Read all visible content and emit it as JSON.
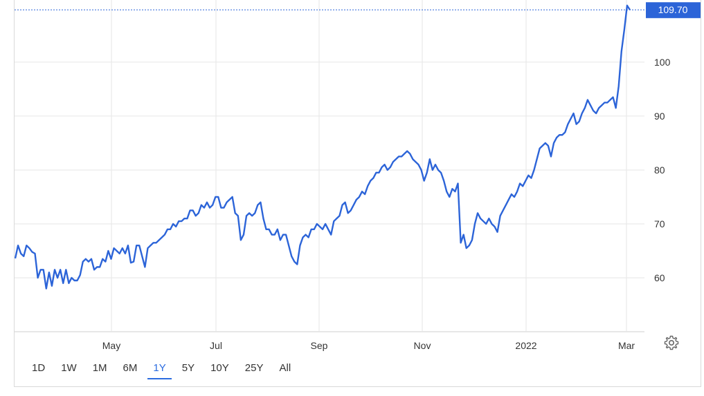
{
  "chart_data": {
    "type": "line",
    "x_tick_labels": [
      "May",
      "Jul",
      "Sep",
      "Nov",
      "2022",
      "Mar"
    ],
    "y_ticks": [
      60,
      70,
      80,
      90,
      100
    ],
    "ylim": [
      50,
      110.5
    ],
    "last_value_label": "109.70",
    "grid": true,
    "series": [
      {
        "color": "#2c64d8",
        "values": [
          63.6,
          66.0,
          64.5,
          64.0,
          66.0,
          65.5,
          64.8,
          64.5,
          60.0,
          61.5,
          61.5,
          58.0,
          61.0,
          58.5,
          61.5,
          60.0,
          61.5,
          59.0,
          61.5,
          59.0,
          60.0,
          59.5,
          59.5,
          60.5,
          63.0,
          63.5,
          63.0,
          63.5,
          61.5,
          62.0,
          62.0,
          63.5,
          63.0,
          65.0,
          63.5,
          65.5,
          65.0,
          64.5,
          65.5,
          64.5,
          66.0,
          62.8,
          63.0,
          66.0,
          66.0,
          64.0,
          62.0,
          65.5,
          66.0,
          66.5,
          66.5,
          67.0,
          67.5,
          68.0,
          69.0,
          69.0,
          70.0,
          69.5,
          70.5,
          70.5,
          71.0,
          71.0,
          72.5,
          72.5,
          71.5,
          72.0,
          73.5,
          73.0,
          74.0,
          73.0,
          73.5,
          75.0,
          75.0,
          73.0,
          73.0,
          74.0,
          74.5,
          75.0,
          72.0,
          71.5,
          67.0,
          68.0,
          71.5,
          72.0,
          71.5,
          72.0,
          73.5,
          74.0,
          71.0,
          69.0,
          69.0,
          68.0,
          68.0,
          69.0,
          67.0,
          68.0,
          68.0,
          66.0,
          64.0,
          63.0,
          62.5,
          66.0,
          67.5,
          68.0,
          67.5,
          69.0,
          69.0,
          70.0,
          69.5,
          69.0,
          70.0,
          69.0,
          68.0,
          70.5,
          71.0,
          71.5,
          73.5,
          74.0,
          72.0,
          72.5,
          73.5,
          74.5,
          75.0,
          76.0,
          75.5,
          77.0,
          78.0,
          78.5,
          79.5,
          79.5,
          80.5,
          81.0,
          80.0,
          80.5,
          81.5,
          82.0,
          82.5,
          82.5,
          83.0,
          83.5,
          83.0,
          82.0,
          81.5,
          81.0,
          80.0,
          78.0,
          79.5,
          82.0,
          80.0,
          81.0,
          80.0,
          79.5,
          78.0,
          76.0,
          75.0,
          76.5,
          76.0,
          77.5,
          66.5,
          68.0,
          65.5,
          66.0,
          67.0,
          70.0,
          72.0,
          71.0,
          70.5,
          70.0,
          71.0,
          70.0,
          69.5,
          68.5,
          71.5,
          72.5,
          73.5,
          74.5,
          75.5,
          75.0,
          76.0,
          77.5,
          77.0,
          78.0,
          79.0,
          78.5,
          80.0,
          82.0,
          84.0,
          84.5,
          85.0,
          84.5,
          82.5,
          85.0,
          86.0,
          86.5,
          86.5,
          87.0,
          88.5,
          89.5,
          90.5,
          88.5,
          89.0,
          90.5,
          91.5,
          93.0,
          92.0,
          91.0,
          90.5,
          91.5,
          92.0,
          92.5,
          92.5,
          93.0,
          93.5,
          91.5,
          95.5,
          102.0,
          106.0,
          110.5,
          109.7
        ]
      }
    ]
  },
  "range_buttons": [
    "1D",
    "1W",
    "1M",
    "6M",
    "1Y",
    "5Y",
    "10Y",
    "25Y",
    "All"
  ],
  "active_range": "1Y",
  "colors": {
    "line": "#2c64d8",
    "grid": "#e6e6e6",
    "badge": "#2c64d8",
    "active": "#2a6be0"
  },
  "icons": {
    "settings": "gear-icon"
  }
}
